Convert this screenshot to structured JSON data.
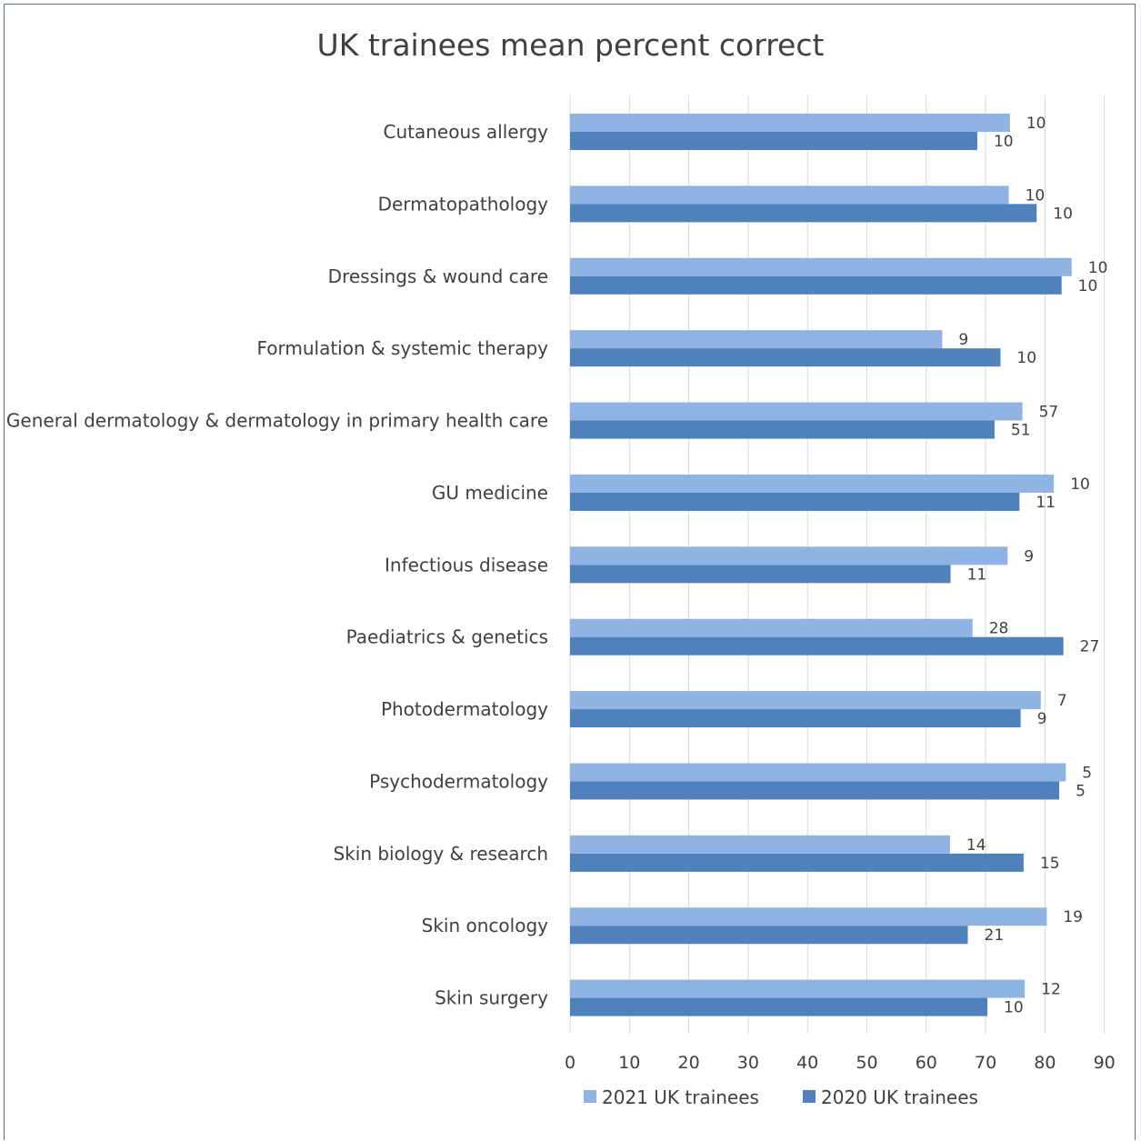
{
  "chart_data": {
    "type": "bar",
    "orientation": "horizontal",
    "title": "UK trainees mean percent correct",
    "categories": [
      "Cutaneous allergy",
      "Dermatopathology",
      "Dressings & wound care",
      "Formulation & systemic therapy",
      "General dermatology & dermatology in primary health care",
      "GU medicine",
      "Infectious disease",
      "Paediatrics & genetics",
      "Photodermatology",
      "Psychodermatology",
      "Skin biology & research",
      "Skin oncology",
      "Skin surgery"
    ],
    "series": [
      {
        "name": "2021 UK trainees",
        "color": "#8fb4e3",
        "values": [
          74.1,
          73.9,
          84.5,
          62.7,
          76.2,
          81.5,
          73.7,
          67.8,
          79.3,
          83.5,
          64.0,
          80.3,
          76.6
        ],
        "data_labels": [
          "10",
          "10",
          "10",
          "9",
          "57",
          "10",
          "9",
          "28",
          "7",
          "5",
          "14",
          "19",
          "12"
        ]
      },
      {
        "name": "2020 UK trainees",
        "color": "#4f81bd",
        "values": [
          68.6,
          78.6,
          82.8,
          72.5,
          71.5,
          75.7,
          64.1,
          83.1,
          75.9,
          82.4,
          76.4,
          67.0,
          70.3
        ],
        "data_labels": [
          "10",
          "10",
          "10",
          "10",
          "51",
          "11",
          "11",
          "27",
          "9",
          "5",
          "15",
          "21",
          "10"
        ]
      }
    ],
    "xlim": [
      0,
      90
    ],
    "xticks": [
      "0",
      "10",
      "20",
      "30",
      "40",
      "50",
      "60",
      "70",
      "80",
      "90"
    ],
    "grid": true,
    "legend_position": "bottom"
  }
}
